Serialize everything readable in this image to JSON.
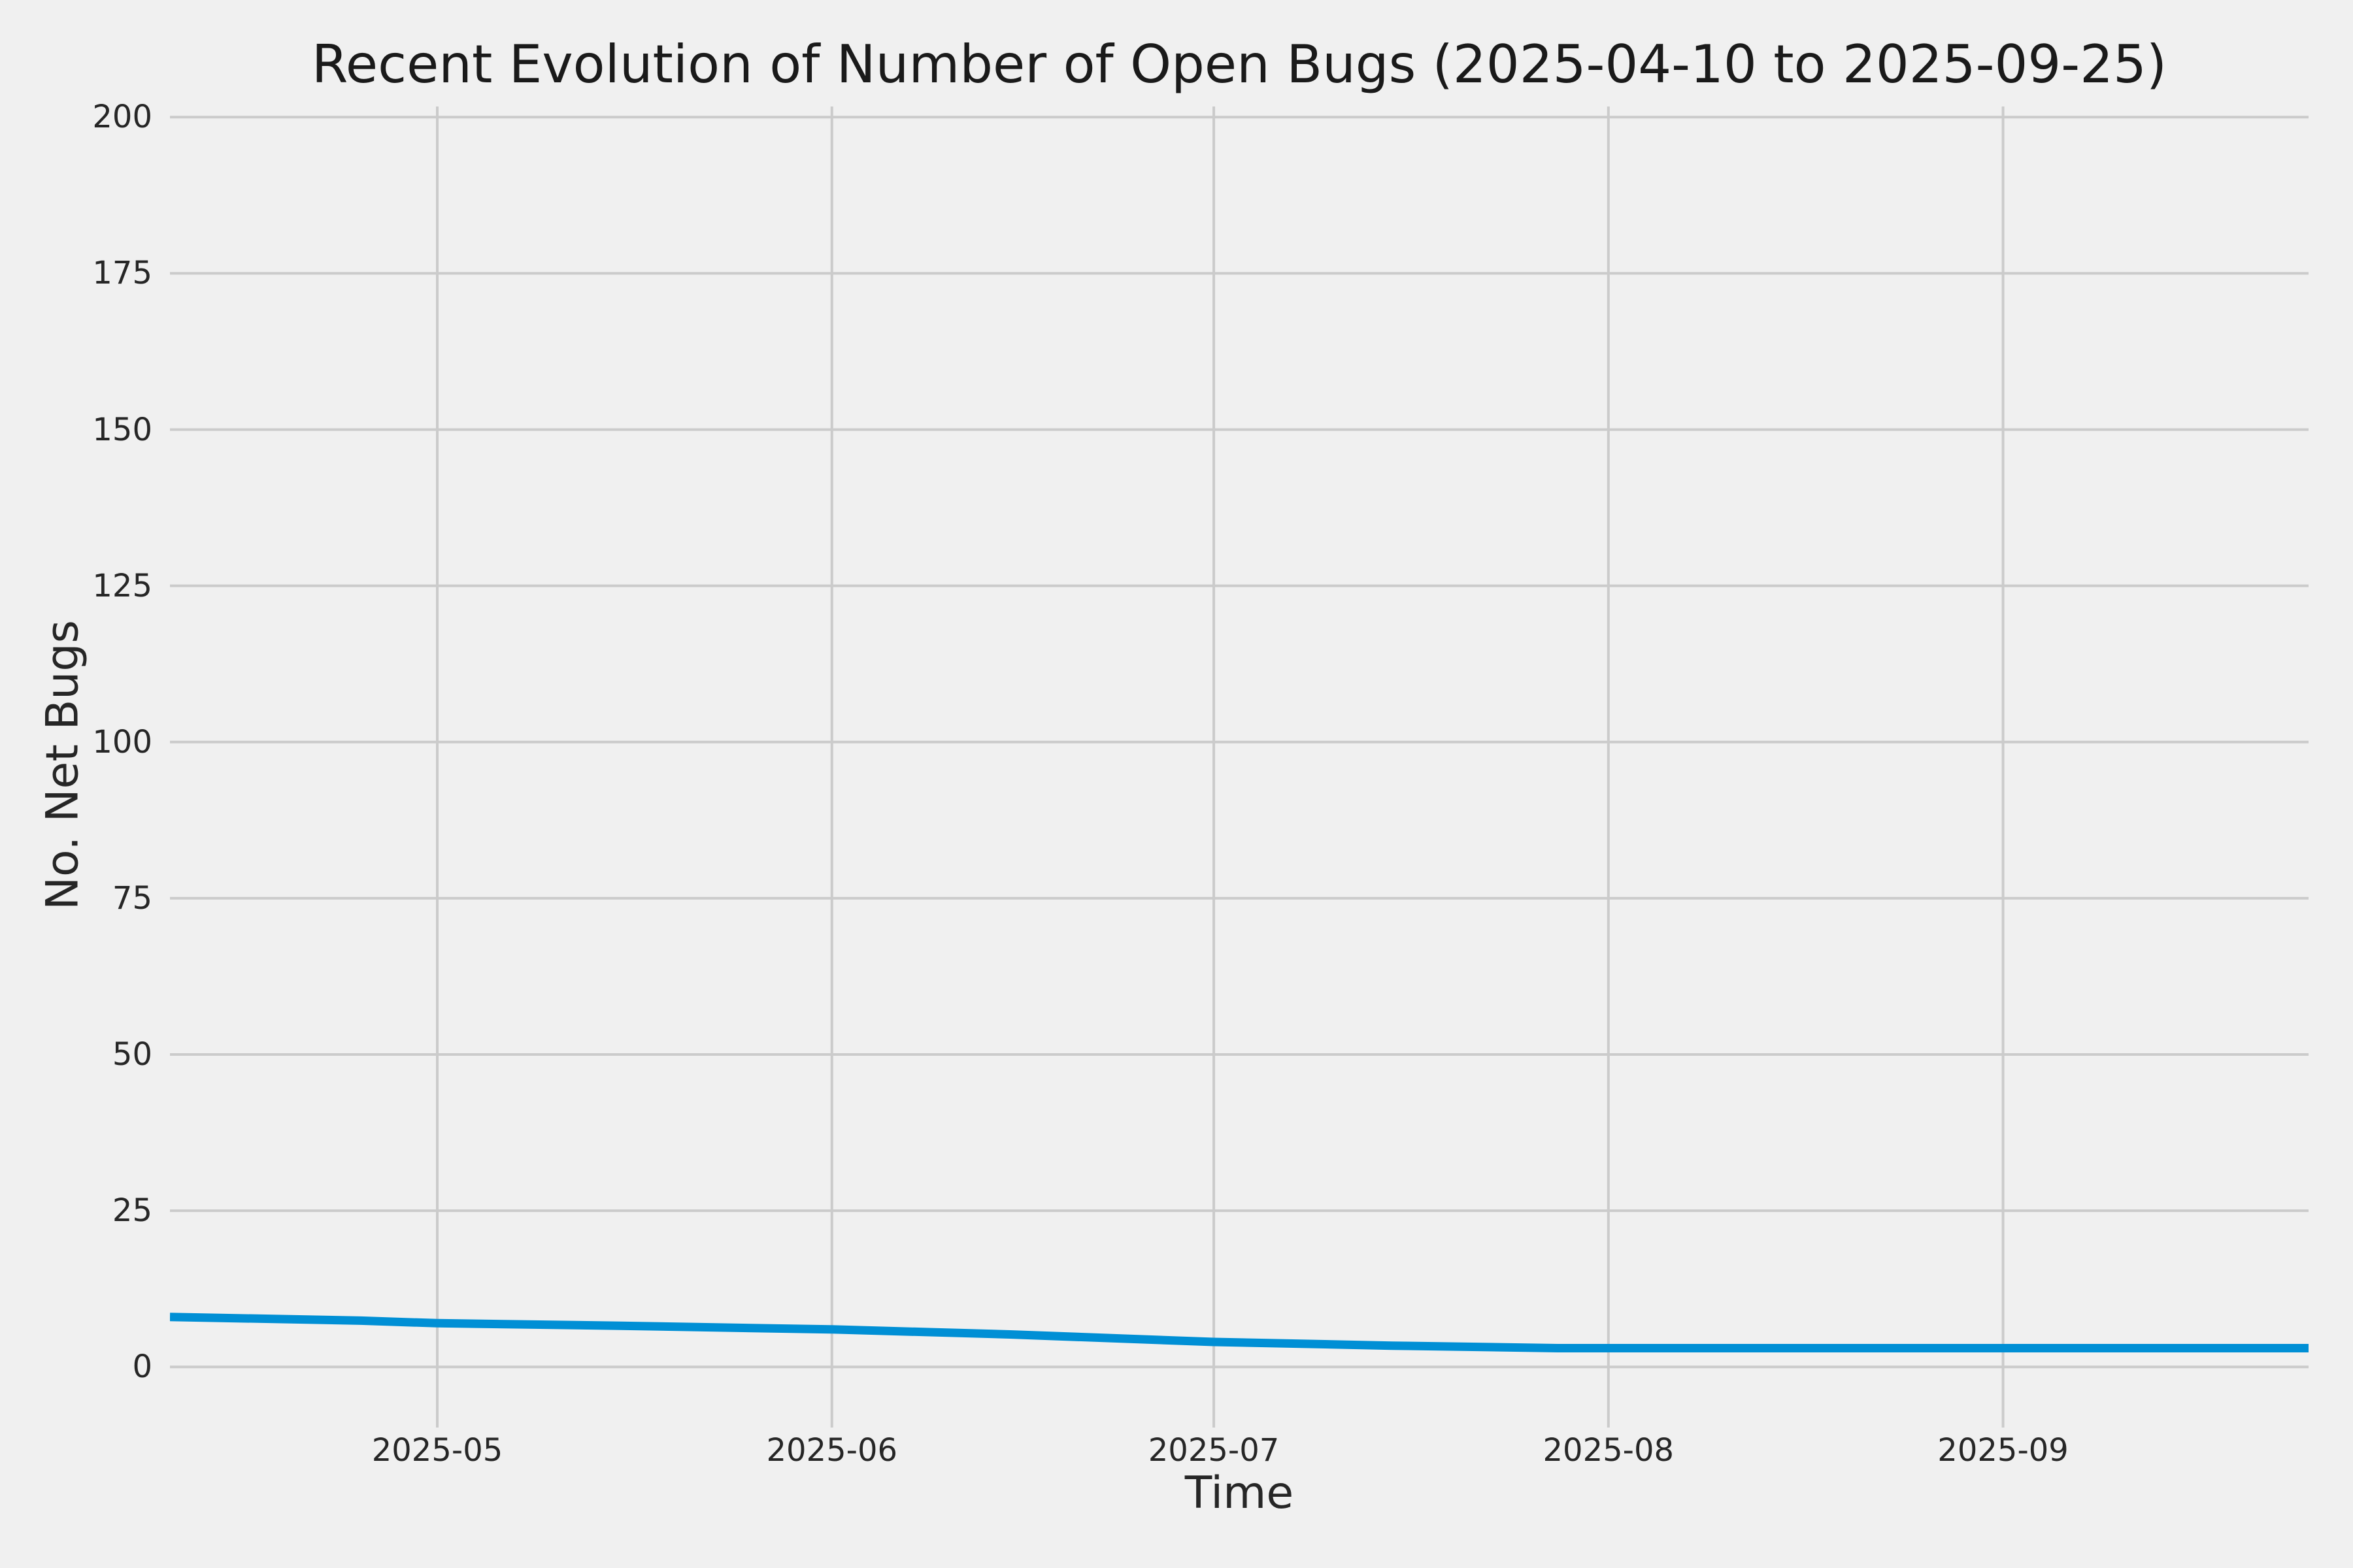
{
  "chart_data": {
    "type": "line",
    "title": "Recent Evolution of Number of Open Bugs (2025-04-10 to 2025-09-25)",
    "xlabel": "Time",
    "ylabel": "No. Net Bugs",
    "x_range": [
      "2025-04-10",
      "2025-09-25"
    ],
    "ylim": [
      -9.7,
      201.7
    ],
    "y_ticks": [
      0,
      25,
      50,
      75,
      100,
      125,
      150,
      175,
      200
    ],
    "x_ticks": [
      {
        "date": "2025-05-01",
        "label": "2025-05"
      },
      {
        "date": "2025-06-01",
        "label": "2025-06"
      },
      {
        "date": "2025-07-01",
        "label": "2025-07"
      },
      {
        "date": "2025-08-01",
        "label": "2025-08"
      },
      {
        "date": "2025-09-01",
        "label": "2025-09"
      }
    ],
    "grid": true,
    "legend_position": "none",
    "series": [
      {
        "name": "open-bugs",
        "color": "#008fd5",
        "points": [
          [
            "2025-04-10",
            8
          ],
          [
            "2025-04-25",
            7.4
          ],
          [
            "2025-05-01",
            7
          ],
          [
            "2025-05-15",
            6.6
          ],
          [
            "2025-06-01",
            6
          ],
          [
            "2025-06-15",
            5.2
          ],
          [
            "2025-07-01",
            4
          ],
          [
            "2025-07-15",
            3.4
          ],
          [
            "2025-07-28",
            3
          ],
          [
            "2025-08-15",
            3
          ],
          [
            "2025-09-01",
            3
          ],
          [
            "2025-09-25",
            3
          ]
        ]
      }
    ],
    "colors": {
      "background": "#f0f0f0",
      "grid": "#cbcbcb",
      "text": "#262626",
      "line": "#008fd5"
    }
  }
}
